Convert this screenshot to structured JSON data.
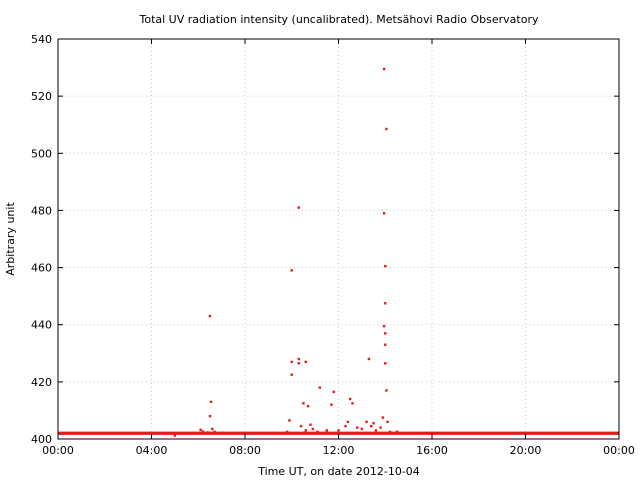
{
  "chart_data": {
    "type": "scatter",
    "title": "Total UV radiation intensity (uncalibrated). Metsähovi Radio Observatory",
    "xlabel": "Time UT, on date 2012-10-04",
    "ylabel": "Arbitrary unit",
    "xlim": [
      "00:00",
      "00:00 (+1 day)"
    ],
    "xlim_hours": [
      0,
      24
    ],
    "ylim": [
      400,
      540
    ],
    "x_ticks": [
      {
        "hour": 0,
        "label": "00:00"
      },
      {
        "hour": 4,
        "label": "04:00"
      },
      {
        "hour": 8,
        "label": "08:00"
      },
      {
        "hour": 12,
        "label": "12:00"
      },
      {
        "hour": 16,
        "label": "16:00"
      },
      {
        "hour": 20,
        "label": "20:00"
      },
      {
        "hour": 24,
        "label": "00:00"
      }
    ],
    "y_ticks": [
      400,
      420,
      440,
      460,
      480,
      500,
      520,
      540
    ],
    "grid": true,
    "marker_color": "#e41a1c",
    "baseline": {
      "value": 402,
      "x_start_hour": 0,
      "x_end_hour": 24
    },
    "points_hours": [
      [
        5.0,
        401.2
      ],
      [
        6.1,
        403.2
      ],
      [
        6.2,
        402.6
      ],
      [
        6.4,
        402.3
      ],
      [
        6.5,
        408.0
      ],
      [
        6.55,
        413.0
      ],
      [
        6.5,
        443.0
      ],
      [
        6.6,
        403.5
      ],
      [
        6.7,
        402.5
      ],
      [
        7.0,
        402.2
      ],
      [
        9.8,
        402.5
      ],
      [
        9.9,
        406.5
      ],
      [
        10.0,
        427.0
      ],
      [
        10.0,
        422.5
      ],
      [
        10.0,
        459.0
      ],
      [
        10.3,
        481.0
      ],
      [
        10.3,
        428.0
      ],
      [
        10.3,
        426.5
      ],
      [
        10.4,
        404.5
      ],
      [
        10.5,
        412.5
      ],
      [
        10.6,
        427.0
      ],
      [
        10.7,
        411.5
      ],
      [
        10.6,
        403.0
      ],
      [
        10.8,
        405.0
      ],
      [
        10.9,
        403.5
      ],
      [
        11.2,
        418.0
      ],
      [
        11.1,
        402.5
      ],
      [
        11.5,
        403.0
      ],
      [
        11.7,
        412.0
      ],
      [
        11.8,
        416.5
      ],
      [
        12.0,
        403.0
      ],
      [
        12.3,
        404.5
      ],
      [
        12.4,
        406.0
      ],
      [
        12.5,
        414.0
      ],
      [
        12.6,
        412.5
      ],
      [
        12.8,
        404.0
      ],
      [
        13.0,
        403.5
      ],
      [
        13.2,
        406.0
      ],
      [
        13.3,
        428.0
      ],
      [
        13.4,
        404.5
      ],
      [
        13.5,
        405.5
      ],
      [
        13.6,
        403.0
      ],
      [
        13.8,
        404.0
      ],
      [
        13.9,
        407.5
      ],
      [
        13.95,
        529.5
      ],
      [
        13.95,
        479.0
      ],
      [
        14.0,
        460.5
      ],
      [
        14.0,
        447.5
      ],
      [
        13.95,
        439.5
      ],
      [
        14.0,
        437.0
      ],
      [
        14.0,
        433.0
      ],
      [
        14.0,
        426.5
      ],
      [
        14.05,
        417.0
      ],
      [
        14.05,
        508.5
      ],
      [
        14.1,
        406.0
      ],
      [
        14.2,
        402.5
      ],
      [
        14.5,
        402.5
      ]
    ]
  }
}
